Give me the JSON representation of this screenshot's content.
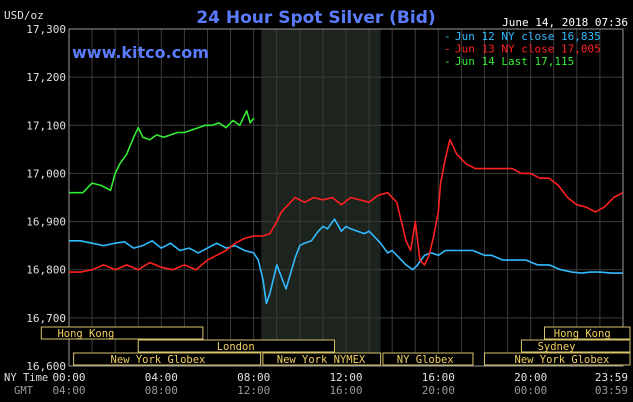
{
  "chart_data": {
    "type": "line",
    "title": "24 Hour Spot Silver (Bid)",
    "unit_label": "USD/oz",
    "date_label": "June 14, 2018 07:36",
    "watermark": "www.kitco.com",
    "ylim": [
      16600,
      17300
    ],
    "y_ticks": [
      16600,
      16700,
      16800,
      16900,
      17000,
      17100,
      17200,
      17300
    ],
    "y_tick_labels": [
      "16,600",
      "16,700",
      "16,800",
      "16,900",
      "17,000",
      "17,100",
      "17,200",
      "17,300"
    ],
    "xlim": [
      0,
      24
    ],
    "x_ticks": [
      0,
      4,
      8,
      12,
      16,
      20,
      23.983
    ],
    "ny_time_label": "NY Time",
    "gmt_label": "GMT",
    "ny_time_ticks": [
      "00:00",
      "04:00",
      "08:00",
      "12:00",
      "16:00",
      "20:00",
      "23:59"
    ],
    "gmt_ticks": [
      "04:00",
      "08:00",
      "12:00",
      "16:00",
      "20:00",
      "00:00",
      "03:59"
    ],
    "grid": true,
    "legend_position": "top-right",
    "series": [
      {
        "name": "Jun 12 NY close 16,835",
        "color": "#33bbff",
        "x": [
          0,
          0.5,
          1,
          1.5,
          2,
          2.4,
          2.8,
          3.2,
          3.6,
          4,
          4.4,
          4.8,
          5.2,
          5.6,
          6,
          6.4,
          6.8,
          7.2,
          7.6,
          8,
          8.2,
          8.4,
          8.55,
          8.7,
          9,
          9.4,
          9.8,
          10,
          10.2,
          10.5,
          10.8,
          11,
          11.2,
          11.5,
          11.8,
          12,
          12.2,
          12.5,
          12.8,
          13,
          13.2,
          13.5,
          13.8,
          14,
          14.3,
          14.6,
          14.9,
          15.1,
          15.4,
          15.7,
          16,
          16.3,
          16.7,
          17,
          17.5,
          18,
          18.3,
          18.8,
          19.3,
          19.8,
          20.3,
          20.8,
          21.3,
          21.8,
          22.2,
          22.6,
          23,
          23.5,
          23.983
        ],
        "values": [
          16860,
          16860,
          16855,
          16850,
          16855,
          16858,
          16845,
          16850,
          16860,
          16845,
          16855,
          16840,
          16845,
          16835,
          16845,
          16855,
          16845,
          16850,
          16840,
          16835,
          16820,
          16780,
          16730,
          16750,
          16810,
          16760,
          16825,
          16850,
          16855,
          16860,
          16880,
          16890,
          16885,
          16905,
          16880,
          16890,
          16885,
          16880,
          16875,
          16880,
          16870,
          16855,
          16835,
          16840,
          16825,
          16810,
          16800,
          16810,
          16830,
          16835,
          16830,
          16840,
          16840,
          16840,
          16840,
          16830,
          16830,
          16820,
          16820,
          16820,
          16810,
          16810,
          16800,
          16795,
          16793,
          16795,
          16795,
          16793,
          16793
        ]
      },
      {
        "name": "Jun 13 NY close 17,005",
        "color": "#ff2020",
        "x": [
          0,
          0.5,
          1,
          1.5,
          2,
          2.5,
          3,
          3.5,
          4,
          4.5,
          5,
          5.5,
          6,
          6.4,
          6.8,
          7.2,
          7.6,
          8,
          8.4,
          8.7,
          9,
          9.2,
          9.5,
          9.8,
          10.2,
          10.6,
          11,
          11.4,
          11.8,
          12.2,
          12.6,
          13,
          13.4,
          13.8,
          14.2,
          14.4,
          14.6,
          14.8,
          15,
          15.2,
          15.4,
          15.6,
          15.8,
          16,
          16.1,
          16.3,
          16.5,
          16.8,
          17.2,
          17.6,
          18,
          18.4,
          18.8,
          19.2,
          19.6,
          20,
          20.4,
          20.8,
          21.2,
          21.6,
          22,
          22.4,
          22.8,
          23.2,
          23.6,
          23.983
        ],
        "values": [
          16795,
          16795,
          16800,
          16810,
          16800,
          16810,
          16800,
          16815,
          16805,
          16800,
          16810,
          16800,
          16820,
          16830,
          16840,
          16855,
          16865,
          16870,
          16870,
          16875,
          16900,
          16920,
          16935,
          16950,
          16940,
          16950,
          16945,
          16950,
          16935,
          16950,
          16945,
          16940,
          16955,
          16960,
          16940,
          16900,
          16860,
          16840,
          16900,
          16820,
          16810,
          16830,
          16870,
          16920,
          16980,
          17030,
          17070,
          17040,
          17020,
          17010,
          17010,
          17010,
          17010,
          17010,
          17000,
          17000,
          16990,
          16990,
          16975,
          16950,
          16935,
          16930,
          16920,
          16930,
          16950,
          16960
        ]
      },
      {
        "name": "Jun 14 Last 17,115",
        "color": "#33ee33",
        "x": [
          0,
          0.3,
          0.6,
          1,
          1.4,
          1.8,
          2,
          2.2,
          2.5,
          2.8,
          3,
          3.2,
          3.5,
          3.8,
          4.1,
          4.4,
          4.7,
          5,
          5.3,
          5.6,
          5.9,
          6.2,
          6.5,
          6.8,
          7.1,
          7.4,
          7.7,
          7.85,
          8
        ],
        "values": [
          16960,
          16960,
          16960,
          16980,
          16975,
          16965,
          17000,
          17020,
          17040,
          17075,
          17095,
          17075,
          17070,
          17080,
          17075,
          17080,
          17085,
          17085,
          17090,
          17095,
          17100,
          17100,
          17105,
          17095,
          17110,
          17100,
          17130,
          17105,
          17115
        ]
      }
    ],
    "sessions": [
      {
        "name": "Hong Kong",
        "row": 0,
        "start": -1.2,
        "end": 5.8,
        "label_at": -0.5
      },
      {
        "name": "Hong Kong",
        "row": 0,
        "start": 20.6,
        "end": 24.5,
        "label_at": 21.0
      },
      {
        "name": "London",
        "row": 1,
        "start": 3.0,
        "end": 11.5,
        "label_at": 6.4
      },
      {
        "name": "Sydney",
        "row": 1,
        "start": 19.6,
        "end": 24.5,
        "label_at": 20.3
      },
      {
        "name": "New York Globex",
        "row": 2,
        "start": 0.2,
        "end": 8.3,
        "label_at": 1.8
      },
      {
        "name": "New York NYMEX",
        "row": 2,
        "start": 8.4,
        "end": 13.5,
        "label_at": 9.0
      },
      {
        "name": "NY Globex",
        "row": 2,
        "start": 13.6,
        "end": 17.5,
        "label_at": 14.2
      },
      {
        "name": "New York Globex",
        "row": 2,
        "start": 18.0,
        "end": 24.5,
        "label_at": 19.3
      }
    ],
    "highlight_region": [
      8.33,
      13.5
    ]
  }
}
